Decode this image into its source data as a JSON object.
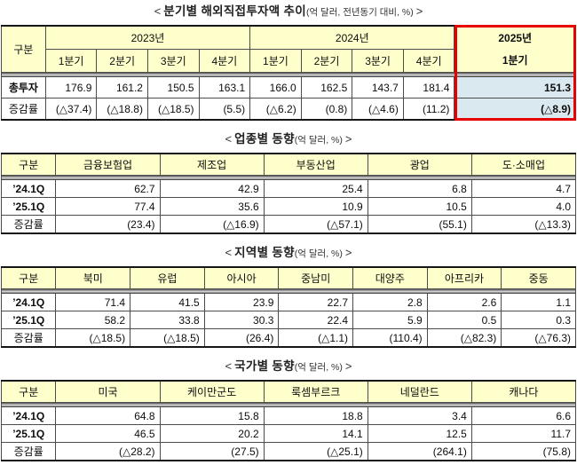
{
  "colors": {
    "header_bg": "#FFFFCC",
    "highlight_bg": "#DAE8EF",
    "highlight_border": "#E60000",
    "outer_border": "#151515",
    "cell_border": "#4B4B4B"
  },
  "tables": [
    {
      "name": "quarterly-investment-trend",
      "title": {
        "open": "<",
        "main": "분기별 해외직접투자액 추이",
        "unit": "(억 달러, 전년동기 대비, %)",
        "close": ">"
      },
      "col_widths": [
        "7.7%",
        "8.9%",
        "8.9%",
        "8.9%",
        "8.9%",
        "8.9%",
        "8.9%",
        "8.9%",
        "8.9%",
        "21.1%"
      ],
      "header_rows": [
        [
          {
            "label": "구분",
            "rowspan": 2
          },
          {
            "label": "2023년",
            "colspan": 4
          },
          {
            "label": "2024년",
            "colspan": 4
          },
          {
            "lines": [
              "2025년",
              "1분기"
            ],
            "rowspan": 2,
            "bold": true,
            "highlight": true
          }
        ],
        [
          {
            "label": "1분기"
          },
          {
            "label": "2분기"
          },
          {
            "label": "3분기"
          },
          {
            "label": "4분기"
          },
          {
            "label": "1분기"
          },
          {
            "label": "2분기"
          },
          {
            "label": "3분기"
          },
          {
            "label": "4분기"
          }
        ]
      ],
      "rows": [
        {
          "label": "총투자",
          "bold_label": true,
          "values": [
            "176.9",
            "161.2",
            "150.5",
            "163.1",
            "166.0",
            "162.5",
            "143.7",
            "181.4",
            "151.3"
          ]
        },
        {
          "label": "증감률",
          "bold_label": false,
          "values": [
            "(△37.4)",
            "(△18.8)",
            "(△18.5)",
            "(5.5)",
            "(△6.2)",
            "(0.8)",
            "(△4.6)",
            "(11.2)",
            "(△8.9)"
          ]
        }
      ],
      "highlight_last_col": true
    },
    {
      "name": "by-industry-trend",
      "title": {
        "open": "<",
        "main": "업종별 동향",
        "unit": "(억 달러, %)",
        "close": ">"
      },
      "col_widths": [
        "9.5%",
        "18.1%",
        "18.1%",
        "18.1%",
        "18.1%",
        "18.1%"
      ],
      "header_rows": [
        [
          {
            "label": "구분"
          },
          {
            "label": "금융보험업"
          },
          {
            "label": "제조업"
          },
          {
            "label": "부동산업"
          },
          {
            "label": "광업"
          },
          {
            "label": "도·소매업"
          }
        ]
      ],
      "rows": [
        {
          "label": "’24.1Q",
          "bold_label": true,
          "values": [
            "62.7",
            "42.9",
            "25.4",
            "6.8",
            "4.7"
          ]
        },
        {
          "label": "’25.1Q",
          "bold_label": true,
          "values": [
            "77.4",
            "35.6",
            "10.9",
            "10.5",
            "4.0"
          ]
        },
        {
          "label": "증감률",
          "bold_label": false,
          "values": [
            "(23.4)",
            "(△16.9)",
            "(△57.1)",
            "(55.1)",
            "(△13.3)"
          ]
        }
      ],
      "highlight_last_col": false
    },
    {
      "name": "by-region-trend",
      "title": {
        "open": "<",
        "main": "지역별 동향",
        "unit": "(억 달러, %)",
        "close": ">"
      },
      "col_widths": [
        "9.5%",
        "12.93%",
        "12.93%",
        "12.93%",
        "12.93%",
        "12.93%",
        "12.93%",
        "12.93%"
      ],
      "header_rows": [
        [
          {
            "label": "구분"
          },
          {
            "label": "북미"
          },
          {
            "label": "유럽"
          },
          {
            "label": "아시아"
          },
          {
            "label": "중남미"
          },
          {
            "label": "대양주"
          },
          {
            "label": "아프리카"
          },
          {
            "label": "중동"
          }
        ]
      ],
      "rows": [
        {
          "label": "’24.1Q",
          "bold_label": true,
          "values": [
            "71.4",
            "41.5",
            "23.9",
            "22.7",
            "2.8",
            "2.6",
            "1.1"
          ]
        },
        {
          "label": "’25.1Q",
          "bold_label": true,
          "values": [
            "58.2",
            "33.8",
            "30.3",
            "22.4",
            "5.9",
            "0.5",
            "0.3"
          ]
        },
        {
          "label": "증감률",
          "bold_label": false,
          "values": [
            "(△18.5)",
            "(△18.5)",
            "(26.4)",
            "(△1.1)",
            "(110.4)",
            "(△82.3)",
            "(△76.3)"
          ]
        }
      ],
      "highlight_last_col": false
    },
    {
      "name": "by-country-trend",
      "title": {
        "open": "<",
        "main": "국가별 동향",
        "unit": "(억 달러, %)",
        "close": ">"
      },
      "col_widths": [
        "9.5%",
        "18.1%",
        "18.1%",
        "18.1%",
        "18.1%",
        "18.1%"
      ],
      "header_rows": [
        [
          {
            "label": "구분"
          },
          {
            "label": "미국"
          },
          {
            "label": "케이만군도"
          },
          {
            "label": "룩셈부르크"
          },
          {
            "label": "네덜란드"
          },
          {
            "label": "캐나다"
          }
        ]
      ],
      "rows": [
        {
          "label": "’24.1Q",
          "bold_label": true,
          "values": [
            "64.8",
            "15.8",
            "18.8",
            "3.4",
            "6.6"
          ]
        },
        {
          "label": "’25.1Q",
          "bold_label": true,
          "values": [
            "46.5",
            "20.2",
            "14.1",
            "12.5",
            "11.7"
          ]
        },
        {
          "label": "증감률",
          "bold_label": false,
          "values": [
            "(△28.2)",
            "(27.5)",
            "(△25.1)",
            "(264.1)",
            "(75.8)"
          ]
        }
      ],
      "highlight_last_col": false
    }
  ]
}
